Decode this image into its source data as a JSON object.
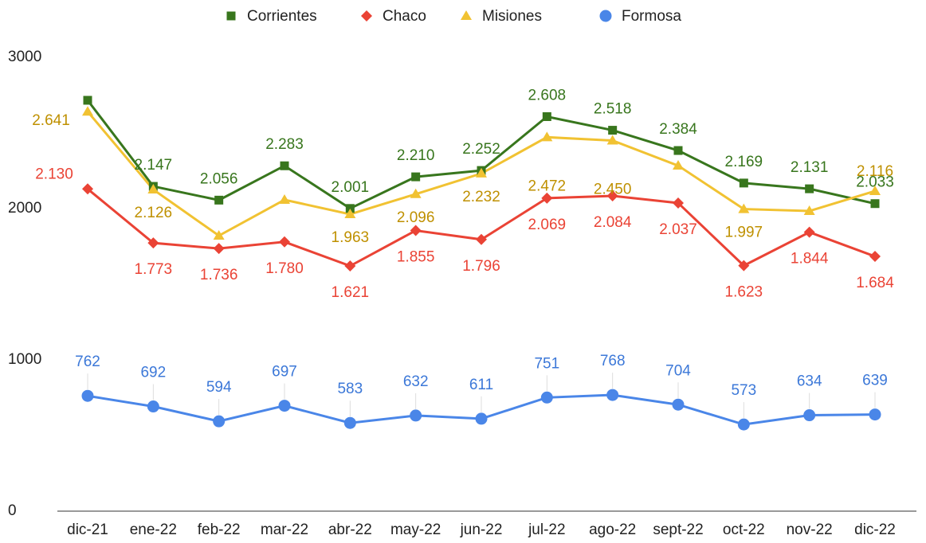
{
  "chart_data": {
    "type": "line",
    "categories": [
      "dic-21",
      "ene-22",
      "feb-22",
      "mar-22",
      "abr-22",
      "may-22",
      "jun-22",
      "jul-22",
      "ago-22",
      "sept-22",
      "oct-22",
      "nov-22",
      "dic-22"
    ],
    "series": [
      {
        "name": "Corrientes",
        "color": "#38761d",
        "marker": "square",
        "values": [
          2716,
          2147,
          2056,
          2283,
          2001,
          2210,
          2252,
          2608,
          2518,
          2384,
          2169,
          2131,
          2033
        ],
        "value_labels": [
          null,
          "2.147",
          "2.056",
          "2.283",
          "2.001",
          "2.210",
          "2.252",
          "2.608",
          "2.518",
          "2.384",
          "2.169",
          "2.131",
          "2.033"
        ]
      },
      {
        "name": "Chaco",
        "color": "#ea4335",
        "marker": "diamond",
        "values": [
          2130,
          1773,
          1736,
          1780,
          1621,
          1855,
          1796,
          2069,
          2084,
          2037,
          1623,
          1844,
          1684
        ],
        "value_labels": [
          "2.130",
          "1.773",
          "1.736",
          "1.780",
          "1.621",
          "1.855",
          "1.796",
          "2.069",
          "2.084",
          "2.037",
          "1.623",
          "1.844",
          "1.684"
        ]
      },
      {
        "name": "Misiones",
        "color": "#f1c232",
        "marker": "triangle",
        "values": [
          2641,
          2126,
          1821,
          2058,
          1963,
          2096,
          2232,
          2472,
          2450,
          2284,
          1997,
          1984,
          2116
        ],
        "value_labels": [
          "2.641",
          "2.126",
          null,
          null,
          "1.963",
          "2.096",
          "2.232",
          "2.472",
          "2.450",
          null,
          "1.997",
          null,
          "2.116"
        ]
      },
      {
        "name": "Formosa",
        "color": "#4a86e8",
        "marker": "circle",
        "values": [
          762,
          692,
          594,
          697,
          583,
          632,
          611,
          751,
          768,
          704,
          573,
          634,
          639
        ]
      }
    ],
    "ylim": [
      0,
      3000
    ],
    "yticks": [
      0,
      1000,
      2000,
      3000
    ],
    "grid": false,
    "legend": "top"
  }
}
